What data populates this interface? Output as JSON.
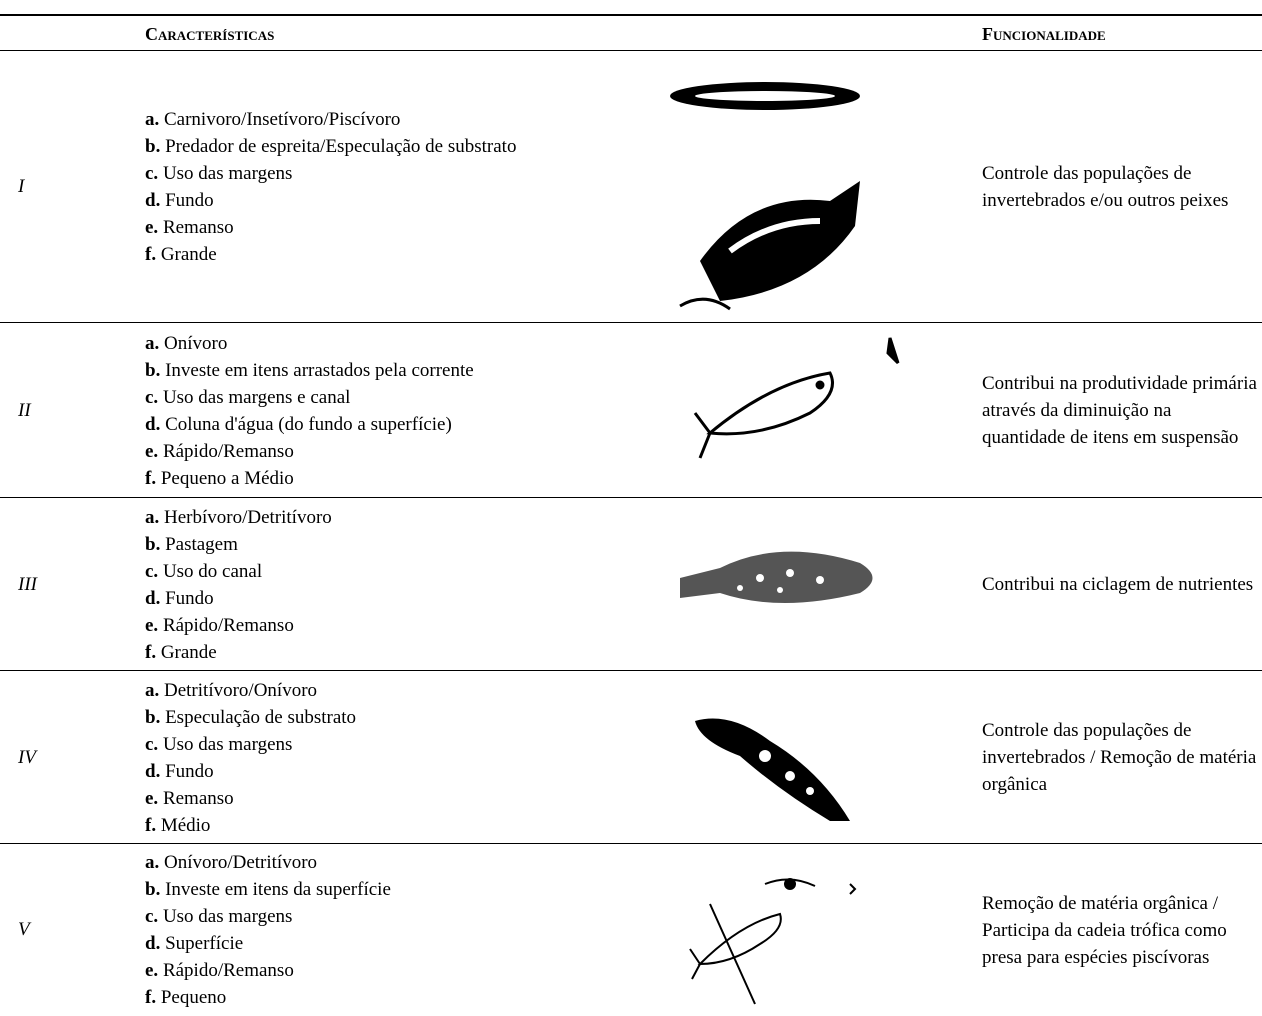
{
  "header": {
    "characteristics": "Características",
    "functionality": "Funcionalidade"
  },
  "rows": [
    {
      "label": "I",
      "items": [
        {
          "letter": "a.",
          "text": "Carnivoro/Insetívoro/Piscívoro"
        },
        {
          "letter": "b.",
          "text": "Predador de espreita/Especulação de substrato"
        },
        {
          "letter": "c.",
          "text": "Uso das margens"
        },
        {
          "letter": "d.",
          "text": "Fundo"
        },
        {
          "letter": "e.",
          "text": "Remanso"
        },
        {
          "letter": "f.",
          "text": "Grande"
        }
      ],
      "function": "Controle das populações de invertebrados e/ou outros peixes"
    },
    {
      "label": "II",
      "items": [
        {
          "letter": "a.",
          "text": "Onívoro"
        },
        {
          "letter": "b.",
          "text": "Investe em itens arrastados pela corrente"
        },
        {
          "letter": "c.",
          "text": "Uso das margens e canal"
        },
        {
          "letter": "d.",
          "text": "Coluna d'água (do fundo a superfície)"
        },
        {
          "letter": "e.",
          "text": "Rápido/Remanso"
        },
        {
          "letter": "f.",
          "text": "Pequeno a Médio"
        }
      ],
      "function": "Contribui na produtividade primária através da diminuição na quantidade de itens em suspensão"
    },
    {
      "label": "III",
      "items": [
        {
          "letter": "a.",
          "text": "Herbívoro/Detritívoro"
        },
        {
          "letter": "b.",
          "text": "Pastagem"
        },
        {
          "letter": "c.",
          "text": "Uso do canal"
        },
        {
          "letter": "d.",
          "text": "Fundo"
        },
        {
          "letter": "e.",
          "text": "Rápido/Remanso"
        },
        {
          "letter": "f.",
          "text": "Grande"
        }
      ],
      "function": "Contribui na ciclagem de nutrientes"
    },
    {
      "label": "IV",
      "items": [
        {
          "letter": "a.",
          "text": "Detritívoro/Onívoro"
        },
        {
          "letter": "b.",
          "text": "Especulação de substrato"
        },
        {
          "letter": "c.",
          "text": "Uso das margens"
        },
        {
          "letter": "d.",
          "text": "Fundo"
        },
        {
          "letter": "e.",
          "text": "Remanso"
        },
        {
          "letter": "f.",
          "text": "Médio"
        }
      ],
      "function": "Controle das populações de invertebrados / Remoção de matéria orgânica"
    },
    {
      "label": "V",
      "items": [
        {
          "letter": "a.",
          "text": "Onívoro/Detritívoro"
        },
        {
          "letter": "b.",
          "text": "Investe em itens da superfície"
        },
        {
          "letter": "c.",
          "text": "Uso das margens"
        },
        {
          "letter": "d.",
          "text": "Superfície"
        },
        {
          "letter": "e.",
          "text": "Rápido/Remanso"
        },
        {
          "letter": "f.",
          "text": "Pequeno"
        }
      ],
      "function": "Remoção de matéria orgânica / Participa da cadeia trófica como presa para espécies piscívoras"
    }
  ]
}
